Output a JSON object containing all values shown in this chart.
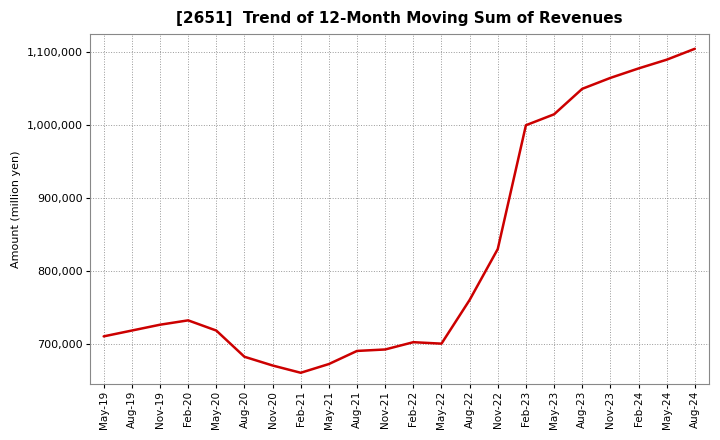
{
  "title": "[2651]  Trend of 12-Month Moving Sum of Revenues",
  "ylabel": "Amount (million yen)",
  "line_color": "#cc0000",
  "background_color": "#ffffff",
  "plot_bg_color": "#ffffff",
  "grid_color": "#999999",
  "ylim": [
    645000,
    1125000
  ],
  "yticks": [
    700000,
    800000,
    900000,
    1000000,
    1100000
  ],
  "x_labels": [
    "May-19",
    "Aug-19",
    "Nov-19",
    "Feb-20",
    "May-20",
    "Aug-20",
    "Nov-20",
    "Feb-21",
    "May-21",
    "Aug-21",
    "Nov-21",
    "Feb-22",
    "May-22",
    "Aug-22",
    "Nov-22",
    "Feb-23",
    "May-23",
    "Aug-23",
    "Nov-23",
    "Feb-24",
    "May-24",
    "Aug-24"
  ],
  "values": [
    710000,
    718000,
    726000,
    732000,
    718000,
    682000,
    670000,
    660000,
    672000,
    690000,
    692000,
    702000,
    700000,
    760000,
    830000,
    1000000,
    1015000,
    1050000,
    1065000,
    1078000,
    1090000,
    1105000
  ],
  "title_fontsize": 11,
  "ylabel_fontsize": 8,
  "tick_fontsize": 8,
  "xtick_fontsize": 7.5
}
